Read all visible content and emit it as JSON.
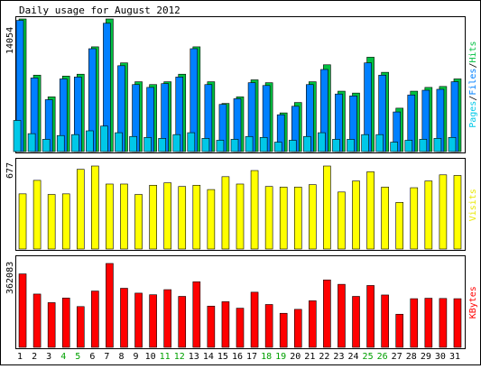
{
  "chart_data": {
    "type": "bar",
    "title": "Daily usage for August 2012",
    "categories": [
      "1",
      "2",
      "3",
      "4",
      "5",
      "6",
      "7",
      "8",
      "9",
      "10",
      "11",
      "12",
      "13",
      "14",
      "15",
      "16",
      "17",
      "18",
      "19",
      "20",
      "21",
      "22",
      "23",
      "24",
      "25",
      "26",
      "27",
      "28",
      "29",
      "30",
      "31"
    ],
    "weekend_days": [
      "4",
      "5",
      "11",
      "12",
      "18",
      "19",
      "25",
      "26"
    ],
    "panels": [
      {
        "id": "pages-files-hits",
        "ylabel_max": "14054",
        "y_max": 14054,
        "legend": [
          {
            "label": "Pages",
            "color": "#00c8e8"
          },
          {
            "label": "/",
            "color": "#000000"
          },
          {
            "label": "Files",
            "color": "#0080ff"
          },
          {
            "label": "/",
            "color": "#000000"
          },
          {
            "label": "Hits",
            "color": "#00c040"
          }
        ],
        "series": [
          {
            "name": "Hits",
            "color": "#00c040",
            "values": [
              14054,
              8100,
              5800,
              8000,
              8200,
              11100,
              14054,
              9400,
              7400,
              7100,
              7400,
              8200,
              11100,
              7400,
              5100,
              5800,
              7600,
              7300,
              4100,
              5200,
              7400,
              9200,
              6400,
              6200,
              10000,
              8400,
              4600,
              6400,
              6800,
              6900,
              7700
            ]
          },
          {
            "name": "Files",
            "color": "#0080ff",
            "values": [
              13900,
              7800,
              5500,
              7700,
              7900,
              10900,
              13600,
              9100,
              7100,
              6800,
              7200,
              7900,
              10900,
              7100,
              5000,
              5600,
              7300,
              7000,
              3900,
              4800,
              7100,
              8700,
              6100,
              5900,
              9400,
              8100,
              4200,
              6000,
              6500,
              6600,
              7400
            ]
          },
          {
            "name": "Pages",
            "color": "#00c8e8",
            "values": [
              3300,
              1900,
              1300,
              1700,
              1800,
              2200,
              2700,
              2000,
              1600,
              1500,
              1400,
              1800,
              2000,
              1400,
              1200,
              1300,
              1600,
              1500,
              1000,
              1200,
              1600,
              2000,
              1300,
              1300,
              1800,
              1800,
              1000,
              1200,
              1300,
              1400,
              1500
            ]
          }
        ]
      },
      {
        "id": "visits",
        "ylabel_max": "677",
        "y_max": 677,
        "legend": [
          {
            "label": "Visits",
            "color": "#e8e800"
          }
        ],
        "series": [
          {
            "name": "Visits",
            "color": "#ffff00",
            "values": [
              450,
              560,
              445,
              450,
              650,
              677,
              530,
              530,
              445,
              520,
              540,
              510,
              520,
              485,
              590,
              530,
              640,
              510,
              505,
              505,
              525,
              677,
              465,
              555,
              630,
              505,
              380,
              500,
              555,
              605,
              600
            ]
          }
        ]
      },
      {
        "id": "kbytes",
        "ylabel_max": "362083",
        "y_max": 362083,
        "legend": [
          {
            "label": "KBytes",
            "color": "#ff0000"
          }
        ],
        "series": [
          {
            "name": "KBytes",
            "color": "#ff0000",
            "values": [
              317000,
              230000,
              193000,
              213000,
              176000,
              243000,
              362083,
              255000,
              234000,
              227000,
              249000,
              220000,
              283000,
              178000,
              197000,
              169000,
              238000,
              185000,
              147000,
              164000,
              201000,
              291000,
              272000,
              220000,
              267000,
              226000,
              143000,
              210000,
              212000,
              211000,
              210000
            ]
          }
        ]
      }
    ]
  }
}
